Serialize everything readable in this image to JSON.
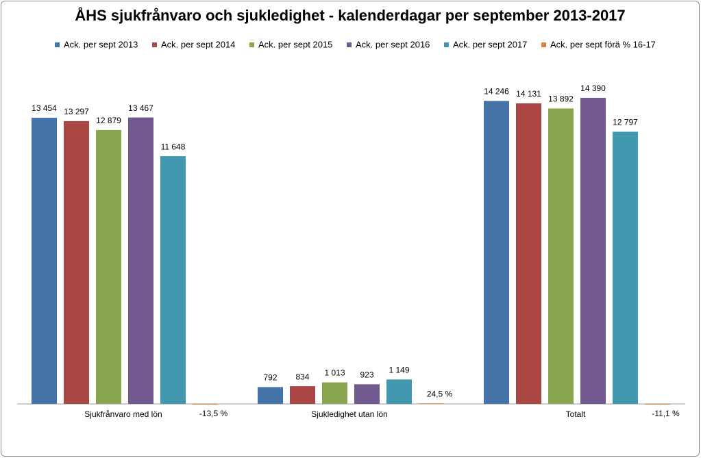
{
  "chart_data": {
    "type": "bar",
    "title": "ÅHS sjukfrånvaro och sjukledighet - kalenderdagar per september 2013-2017",
    "categories": [
      "Sjukfrånvaro med lön",
      "Sjukledighet utan lön",
      "Totalt"
    ],
    "series": [
      {
        "name": "Ack. per sept 2013",
        "color": "#4572a7",
        "values": [
          13454,
          792,
          14246
        ],
        "value_labels": [
          "13 454",
          "792",
          "14 246"
        ]
      },
      {
        "name": "Ack. per sept 2014",
        "color": "#aa4643",
        "values": [
          13297,
          834,
          14131
        ],
        "value_labels": [
          "13 297",
          "834",
          "14 131"
        ]
      },
      {
        "name": "Ack. per sept 2015",
        "color": "#89a54e",
        "values": [
          12879,
          1013,
          13892
        ],
        "value_labels": [
          "12 879",
          "1 013",
          "13 892"
        ]
      },
      {
        "name": "Ack. per sept 2016",
        "color": "#71588f",
        "values": [
          13467,
          923,
          14390
        ],
        "value_labels": [
          "13 467",
          "923",
          "14 390"
        ]
      },
      {
        "name": "Ack. per sept 2017",
        "color": "#4198af",
        "values": [
          11648,
          1149,
          12797
        ],
        "value_labels": [
          "11 648",
          "1 149",
          "12 797"
        ]
      },
      {
        "name": "Ack. per sept förä % 16-17",
        "color": "#db843d",
        "values": [
          -13.5,
          24.5,
          -11.1
        ],
        "value_labels": [
          "-13,5 %",
          "24,5 %",
          "-11,1 %"
        ]
      }
    ],
    "ylim": [
      0,
      15000
    ]
  }
}
